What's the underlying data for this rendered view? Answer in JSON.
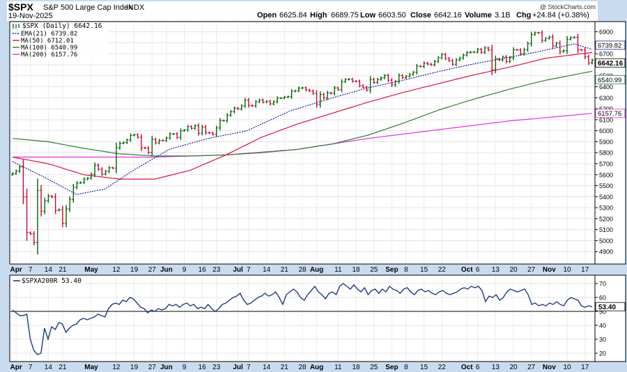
{
  "header": {
    "symbol": "$SPX",
    "description": "S&P 500 Large Cap Index",
    "exchange": "INDX",
    "date": "19-Nov-2025",
    "watermark": "@ StockCharts.com",
    "open_label": "Open",
    "open": "6625.84",
    "high_label": "High",
    "high": "6689.75",
    "low_label": "Low",
    "low": "6603.50",
    "close_label": "Close",
    "close": "6642.16",
    "volume_label": "Volume",
    "volume": "3.1B",
    "chg_label": "Chg",
    "chg": "+24.84 (+0.38%)"
  },
  "legend": {
    "price": "$SPX (Daily) 6642.16",
    "ema21": "EMA(21) 6739.82",
    "ma50": "MA(50) 6712.01",
    "ma100": "MA(100) 6540.99",
    "ma200": "MA(200) 6157.76"
  },
  "lower_legend": "$SPXA200R 53.40",
  "colors": {
    "up": "#006400",
    "down": "#cc0033",
    "ema21": "#1a1a99",
    "ma50": "#d9143a",
    "ma100": "#2e7d32",
    "ma200": "#e62ee6",
    "line": "#1f3a7a",
    "panel_bg": "#ffffff",
    "frame_bg": "#c9dcef"
  },
  "chart_data": [
    {
      "type": "candlestick",
      "title": "$SPX S&P 500 Large Cap Index",
      "ylim": [
        4800,
        6980
      ],
      "y_ticks": [
        4900,
        5000,
        5100,
        5200,
        5300,
        5400,
        5500,
        5600,
        5700,
        5800,
        5900,
        6000,
        6100,
        6200,
        6300,
        6400,
        6500,
        6600,
        6700,
        6800,
        6900
      ],
      "x_tick_labels": [
        "Apr",
        "7",
        "14",
        "21",
        "May",
        "12",
        "19",
        "27",
        "Jun",
        "9",
        "16",
        "23",
        "Jul",
        "7",
        "14",
        "21",
        "28",
        "Aug",
        "11",
        "18",
        "25",
        "Sep",
        "8",
        "15",
        "22",
        "Oct",
        "6",
        "13",
        "20",
        "27",
        "Nov",
        "10",
        "17"
      ],
      "month_labels": [
        "Apr",
        "May",
        "Jun",
        "Jul",
        "Aug",
        "Sep",
        "Oct",
        "Nov"
      ],
      "price_label_boxes": {
        "ema21": "6739.82",
        "close": "6642.16",
        "ma100": "6540.99",
        "ma200": "6157.76"
      },
      "close_series": {
        "start": "2025-03-31",
        "end": "2025-11-19",
        "points": [
          [
            "2025-03-31",
            5611
          ],
          [
            "2025-04-01",
            5633
          ],
          [
            "2025-04-02",
            5671
          ],
          [
            "2025-04-03",
            5397
          ],
          [
            "2025-04-04",
            5074
          ],
          [
            "2025-04-07",
            5062
          ],
          [
            "2025-04-08",
            4982
          ],
          [
            "2025-04-09",
            5457
          ],
          [
            "2025-04-10",
            5268
          ],
          [
            "2025-04-11",
            5363
          ],
          [
            "2025-04-14",
            5406
          ],
          [
            "2025-04-15",
            5397
          ],
          [
            "2025-04-16",
            5276
          ],
          [
            "2025-04-17",
            5282
          ],
          [
            "2025-04-21",
            5158
          ],
          [
            "2025-04-22",
            5288
          ],
          [
            "2025-04-23",
            5376
          ],
          [
            "2025-04-24",
            5485
          ],
          [
            "2025-04-25",
            5525
          ],
          [
            "2025-04-28",
            5529
          ],
          [
            "2025-04-29",
            5560
          ],
          [
            "2025-04-30",
            5569
          ],
          [
            "2025-05-01",
            5604
          ],
          [
            "2025-05-02",
            5686
          ],
          [
            "2025-05-05",
            5650
          ],
          [
            "2025-05-06",
            5607
          ],
          [
            "2025-05-07",
            5631
          ],
          [
            "2025-05-08",
            5663
          ],
          [
            "2025-05-09",
            5660
          ],
          [
            "2025-05-12",
            5844
          ],
          [
            "2025-05-13",
            5886
          ],
          [
            "2025-05-14",
            5892
          ],
          [
            "2025-05-15",
            5916
          ],
          [
            "2025-05-16",
            5958
          ],
          [
            "2025-05-19",
            5963
          ],
          [
            "2025-05-20",
            5940
          ],
          [
            "2025-05-21",
            5844
          ],
          [
            "2025-05-22",
            5842
          ],
          [
            "2025-05-23",
            5802
          ],
          [
            "2025-05-27",
            5921
          ],
          [
            "2025-05-28",
            5889
          ],
          [
            "2025-05-29",
            5912
          ],
          [
            "2025-05-30",
            5911
          ],
          [
            "2025-06-02",
            5935
          ],
          [
            "2025-06-03",
            5970
          ],
          [
            "2025-06-04",
            5971
          ],
          [
            "2025-06-05",
            5939
          ],
          [
            "2025-06-06",
            6000
          ],
          [
            "2025-06-09",
            6006
          ],
          [
            "2025-06-10",
            6038
          ],
          [
            "2025-06-11",
            6022
          ],
          [
            "2025-06-12",
            6045
          ],
          [
            "2025-06-13",
            5977
          ],
          [
            "2025-06-16",
            6033
          ],
          [
            "2025-06-17",
            5982
          ],
          [
            "2025-06-18",
            5980
          ],
          [
            "2025-06-20",
            5967
          ],
          [
            "2025-06-23",
            6025
          ],
          [
            "2025-06-24",
            6092
          ],
          [
            "2025-06-25",
            6092
          ],
          [
            "2025-06-26",
            6141
          ],
          [
            "2025-06-27",
            6173
          ],
          [
            "2025-06-30",
            6205
          ],
          [
            "2025-07-01",
            6198
          ],
          [
            "2025-07-02",
            6227
          ],
          [
            "2025-07-03",
            6279
          ],
          [
            "2025-07-07",
            6230
          ],
          [
            "2025-07-08",
            6226
          ],
          [
            "2025-07-09",
            6263
          ],
          [
            "2025-07-10",
            6280
          ],
          [
            "2025-07-11",
            6260
          ],
          [
            "2025-07-14",
            6268
          ],
          [
            "2025-07-15",
            6244
          ],
          [
            "2025-07-16",
            6264
          ],
          [
            "2025-07-17",
            6297
          ],
          [
            "2025-07-18",
            6297
          ],
          [
            "2025-07-21",
            6306
          ],
          [
            "2025-07-22",
            6309
          ],
          [
            "2025-07-23",
            6359
          ],
          [
            "2025-07-24",
            6363
          ],
          [
            "2025-07-25",
            6388
          ],
          [
            "2025-07-28",
            6390
          ],
          [
            "2025-07-29",
            6371
          ],
          [
            "2025-07-30",
            6362
          ],
          [
            "2025-07-31",
            6339
          ],
          [
            "2025-08-01",
            6238
          ],
          [
            "2025-08-04",
            6330
          ],
          [
            "2025-08-05",
            6299
          ],
          [
            "2025-08-06",
            6345
          ],
          [
            "2025-08-07",
            6340
          ],
          [
            "2025-08-08",
            6389
          ],
          [
            "2025-08-11",
            6373
          ],
          [
            "2025-08-12",
            6446
          ],
          [
            "2025-08-13",
            6466
          ],
          [
            "2025-08-14",
            6469
          ],
          [
            "2025-08-15",
            6450
          ],
          [
            "2025-08-18",
            6449
          ],
          [
            "2025-08-19",
            6411
          ],
          [
            "2025-08-20",
            6396
          ],
          [
            "2025-08-21",
            6370
          ],
          [
            "2025-08-22",
            6467
          ],
          [
            "2025-08-25",
            6439
          ],
          [
            "2025-08-26",
            6466
          ],
          [
            "2025-08-27",
            6481
          ],
          [
            "2025-08-28",
            6502
          ],
          [
            "2025-08-29",
            6460
          ],
          [
            "2025-09-02",
            6416
          ],
          [
            "2025-09-03",
            6448
          ],
          [
            "2025-09-04",
            6502
          ],
          [
            "2025-09-05",
            6482
          ],
          [
            "2025-09-08",
            6495
          ],
          [
            "2025-09-09",
            6513
          ],
          [
            "2025-09-10",
            6532
          ],
          [
            "2025-09-11",
            6587
          ],
          [
            "2025-09-12",
            6584
          ],
          [
            "2025-09-15",
            6615
          ],
          [
            "2025-09-16",
            6606
          ],
          [
            "2025-09-17",
            6600
          ],
          [
            "2025-09-18",
            6631
          ],
          [
            "2025-09-19",
            6664
          ],
          [
            "2025-09-22",
            6693
          ],
          [
            "2025-09-23",
            6657
          ],
          [
            "2025-09-24",
            6638
          ],
          [
            "2025-09-25",
            6605
          ],
          [
            "2025-09-26",
            6644
          ],
          [
            "2025-09-29",
            6661
          ],
          [
            "2025-09-30",
            6688
          ],
          [
            "2025-10-01",
            6711
          ],
          [
            "2025-10-02",
            6715
          ],
          [
            "2025-10-03",
            6716
          ],
          [
            "2025-10-06",
            6740
          ],
          [
            "2025-10-07",
            6714
          ],
          [
            "2025-10-08",
            6753
          ],
          [
            "2025-10-09",
            6735
          ],
          [
            "2025-10-10",
            6553
          ],
          [
            "2025-10-13",
            6654
          ],
          [
            "2025-10-14",
            6644
          ],
          [
            "2025-10-15",
            6671
          ],
          [
            "2025-10-16",
            6630
          ],
          [
            "2025-10-17",
            6664
          ],
          [
            "2025-10-20",
            6736
          ],
          [
            "2025-10-21",
            6735
          ],
          [
            "2025-10-22",
            6699
          ],
          [
            "2025-10-23",
            6738
          ],
          [
            "2025-10-24",
            6792
          ],
          [
            "2025-10-27",
            6875
          ],
          [
            "2025-10-28",
            6891
          ],
          [
            "2025-10-29",
            6890
          ],
          [
            "2025-10-30",
            6822
          ],
          [
            "2025-10-31",
            6840
          ],
          [
            "2025-11-03",
            6852
          ],
          [
            "2025-11-04",
            6771
          ],
          [
            "2025-11-05",
            6796
          ],
          [
            "2025-11-06",
            6720
          ],
          [
            "2025-11-07",
            6729
          ],
          [
            "2025-11-10",
            6832
          ],
          [
            "2025-11-11",
            6846
          ],
          [
            "2025-11-12",
            6850
          ],
          [
            "2025-11-13",
            6737
          ],
          [
            "2025-11-14",
            6734
          ],
          [
            "2025-11-17",
            6672
          ],
          [
            "2025-11-18",
            6617
          ],
          [
            "2025-11-19",
            6642
          ]
        ]
      },
      "ema21_series": [
        [
          0,
          5720
        ],
        [
          10,
          5560
        ],
        [
          18,
          5420
        ],
        [
          26,
          5470
        ],
        [
          34,
          5640
        ],
        [
          44,
          5830
        ],
        [
          55,
          5930
        ],
        [
          66,
          6000
        ],
        [
          78,
          6180
        ],
        [
          90,
          6300
        ],
        [
          100,
          6390
        ],
        [
          110,
          6460
        ],
        [
          120,
          6540
        ],
        [
          130,
          6610
        ],
        [
          140,
          6670
        ],
        [
          148,
          6720
        ],
        [
          158,
          6790
        ],
        [
          163,
          6739.82
        ]
      ],
      "ma50_series": [
        [
          0,
          5760
        ],
        [
          10,
          5700
        ],
        [
          20,
          5600
        ],
        [
          30,
          5560
        ],
        [
          40,
          5560
        ],
        [
          50,
          5640
        ],
        [
          60,
          5780
        ],
        [
          70,
          5940
        ],
        [
          80,
          6060
        ],
        [
          90,
          6160
        ],
        [
          100,
          6260
        ],
        [
          110,
          6350
        ],
        [
          120,
          6430
        ],
        [
          130,
          6510
        ],
        [
          140,
          6580
        ],
        [
          150,
          6660
        ],
        [
          163,
          6712.01
        ]
      ],
      "ma100_series": [
        [
          0,
          5930
        ],
        [
          10,
          5900
        ],
        [
          20,
          5840
        ],
        [
          30,
          5790
        ],
        [
          40,
          5770
        ],
        [
          50,
          5770
        ],
        [
          60,
          5780
        ],
        [
          70,
          5800
        ],
        [
          80,
          5830
        ],
        [
          90,
          5880
        ],
        [
          100,
          5960
        ],
        [
          110,
          6070
        ],
        [
          120,
          6190
        ],
        [
          130,
          6290
        ],
        [
          140,
          6380
        ],
        [
          150,
          6460
        ],
        [
          163,
          6540.99
        ]
      ],
      "ma200_series": [
        [
          0,
          5760
        ],
        [
          20,
          5760
        ],
        [
          40,
          5760
        ],
        [
          60,
          5780
        ],
        [
          80,
          5830
        ],
        [
          100,
          5930
        ],
        [
          120,
          6010
        ],
        [
          140,
          6090
        ],
        [
          163,
          6157.76
        ]
      ]
    },
    {
      "type": "line",
      "title": "$SPXA200R 53.40",
      "ylim": [
        15,
        75
      ],
      "y_ticks": [
        20,
        30,
        40,
        50,
        60,
        70
      ],
      "reference_line": 50,
      "last_value": "53.40",
      "x_tick_labels": [
        "Apr",
        "7",
        "14",
        "21",
        "May",
        "12",
        "19",
        "27",
        "Jun",
        "9",
        "16",
        "23",
        "Jul",
        "7",
        "14",
        "21",
        "28",
        "Aug",
        "11",
        "18",
        "25",
        "Sep",
        "8",
        "15",
        "22",
        "Oct",
        "6",
        "13",
        "20",
        "27",
        "Nov",
        "10",
        "17"
      ],
      "values": [
        51,
        49,
        47,
        47,
        48,
        30,
        22,
        19,
        20,
        38,
        30,
        39,
        37,
        42,
        41,
        35,
        38,
        40,
        41,
        44,
        45,
        44,
        45,
        46,
        48,
        47,
        46,
        52,
        55,
        56,
        55,
        58,
        57,
        60,
        59,
        56,
        53,
        52,
        49,
        51,
        50,
        52,
        51,
        52,
        55,
        54,
        55,
        53,
        55,
        56,
        54,
        55,
        52,
        53,
        52,
        55,
        52,
        50,
        52,
        55,
        56,
        58,
        60,
        61,
        63,
        58,
        55,
        56,
        58,
        60,
        61,
        63,
        61,
        62,
        64,
        60,
        55,
        62,
        64,
        66,
        64,
        60,
        58,
        62,
        65,
        68,
        64,
        62,
        59,
        63,
        64,
        62,
        68,
        70,
        68,
        66,
        69,
        66,
        64,
        67,
        62,
        65,
        66,
        63,
        66,
        64,
        68,
        66,
        65,
        63,
        66,
        67,
        64,
        62,
        65,
        66,
        64,
        65,
        63,
        62,
        64,
        65,
        63,
        62,
        63,
        64,
        66,
        67,
        66,
        68,
        67,
        68,
        65,
        57,
        61,
        60,
        62,
        58,
        60,
        64,
        66,
        65,
        64,
        65,
        66,
        62,
        55,
        56,
        54,
        55,
        54,
        56,
        55,
        57,
        55,
        54,
        58,
        60,
        59,
        58,
        54,
        53,
        54,
        53.4
      ]
    }
  ]
}
